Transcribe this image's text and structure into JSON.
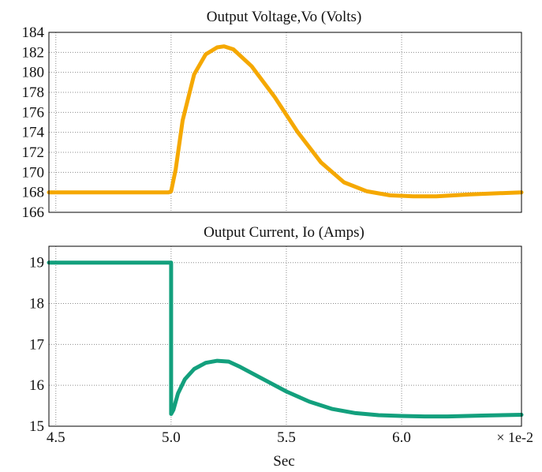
{
  "chart_data": [
    {
      "type": "line",
      "title": "Output Voltage,Vo (Volts)",
      "xlabel": "",
      "ylabel": "",
      "xlim": [
        4.47,
        6.52
      ],
      "ylim": [
        166,
        184
      ],
      "yticks": [
        166,
        168,
        170,
        172,
        174,
        176,
        178,
        180,
        182,
        184
      ],
      "xticks": [
        4.5,
        5.0,
        5.5,
        6.0
      ],
      "grid": true,
      "color": "#f5a800",
      "series": [
        {
          "x": [
            4.47,
            4.7,
            4.99,
            5.0,
            5.02,
            5.05,
            5.1,
            5.15,
            5.2,
            5.23,
            5.27,
            5.35,
            5.45,
            5.55,
            5.65,
            5.75,
            5.85,
            5.95,
            6.05,
            6.15,
            6.3,
            6.52
          ],
          "y": [
            168,
            168,
            168,
            168.1,
            170.3,
            175.2,
            179.8,
            181.8,
            182.5,
            182.6,
            182.3,
            180.6,
            177.5,
            174.0,
            171.0,
            169.0,
            168.1,
            167.7,
            167.6,
            167.6,
            167.8,
            168.0
          ]
        }
      ]
    },
    {
      "type": "line",
      "title": "Output Current, Io (Amps)",
      "xlabel": "Sec",
      "ylabel": "",
      "x_scale_note": "× 1e-2",
      "xlim": [
        4.47,
        6.52
      ],
      "ylim": [
        15,
        19.4
      ],
      "yticks": [
        15,
        16,
        17,
        18,
        19
      ],
      "xticks": [
        4.5,
        5.0,
        5.5,
        6.0
      ],
      "xticklabels": [
        "4.5",
        "5.0",
        "5.5",
        "6.0"
      ],
      "grid": true,
      "color": "#13a07d",
      "series": [
        {
          "x": [
            4.47,
            4.8,
            4.999,
            5.0,
            5.0,
            5.01,
            5.03,
            5.06,
            5.1,
            5.15,
            5.2,
            5.25,
            5.3,
            5.4,
            5.5,
            5.6,
            5.7,
            5.8,
            5.9,
            6.0,
            6.1,
            6.2,
            6.35,
            6.52
          ],
          "y": [
            19.0,
            19.0,
            19.0,
            19.0,
            15.3,
            15.4,
            15.8,
            16.15,
            16.4,
            16.55,
            16.6,
            16.58,
            16.45,
            16.15,
            15.85,
            15.6,
            15.42,
            15.32,
            15.27,
            15.25,
            15.24,
            15.24,
            15.26,
            15.28
          ]
        }
      ]
    }
  ]
}
